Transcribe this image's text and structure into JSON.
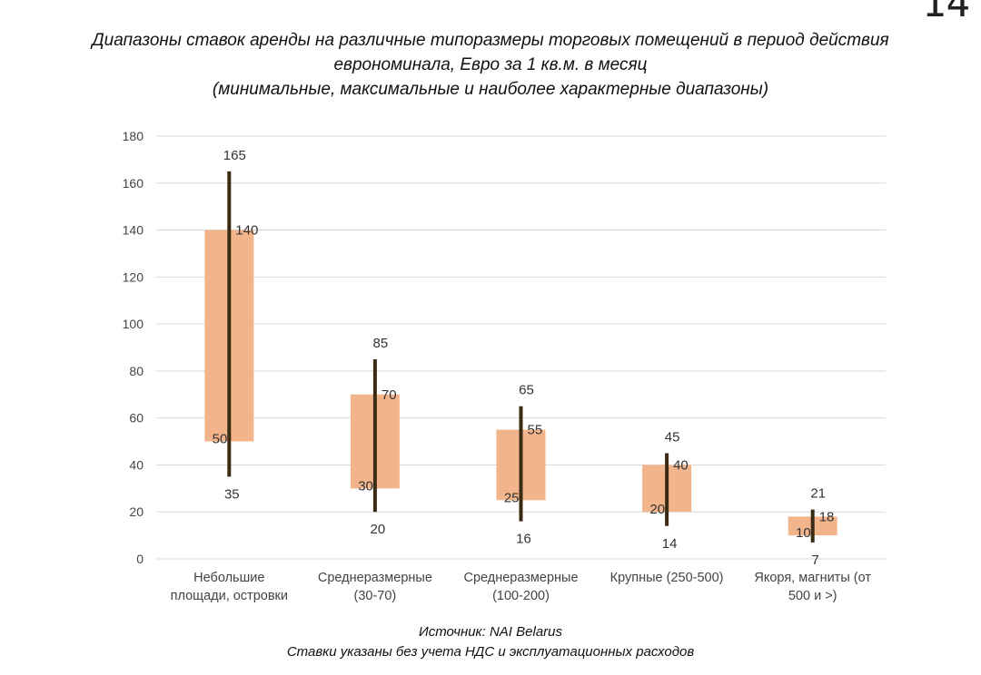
{
  "page_number": "14",
  "title_lines": [
    "Диапазоны ставок аренды на различные типоразмеры торговых помещений в период действия",
    "еврономинала, Евро за 1 кв.м. в месяц",
    "(минимальные, максимальные и наиболее характерные диапазоны)"
  ],
  "footer": {
    "source": "Источник: NAI Belarus",
    "note": "Ставки указаны без учета НДС и эксплуатационных расходов"
  },
  "colors": {
    "box": "#f2b48a",
    "whisker": "#3b2a14",
    "grid": "#d9d9d9"
  },
  "chart_data": {
    "type": "range-bar",
    "ylim": [
      0,
      180
    ],
    "yticks": [
      0,
      20,
      40,
      60,
      80,
      100,
      120,
      140,
      160,
      180
    ],
    "grid": true,
    "categories": [
      [
        "Небольшие",
        "площади, островки"
      ],
      [
        "Среднеразмерные",
        "(30-70)"
      ],
      [
        "Среднеразмерные",
        "(100-200)"
      ],
      [
        "Крупные (250-500)"
      ],
      [
        "Якоря, магниты (от",
        "500 и >)"
      ]
    ],
    "series": [
      {
        "min": 35,
        "max": 165,
        "typical_low": 50,
        "typical_high": 140
      },
      {
        "min": 20,
        "max": 85,
        "typical_low": 30,
        "typical_high": 70
      },
      {
        "min": 16,
        "max": 65,
        "typical_low": 25,
        "typical_high": 55
      },
      {
        "min": 14,
        "max": 45,
        "typical_low": 20,
        "typical_high": 40
      },
      {
        "min": 7,
        "max": 21,
        "typical_low": 10,
        "typical_high": 18
      }
    ]
  }
}
